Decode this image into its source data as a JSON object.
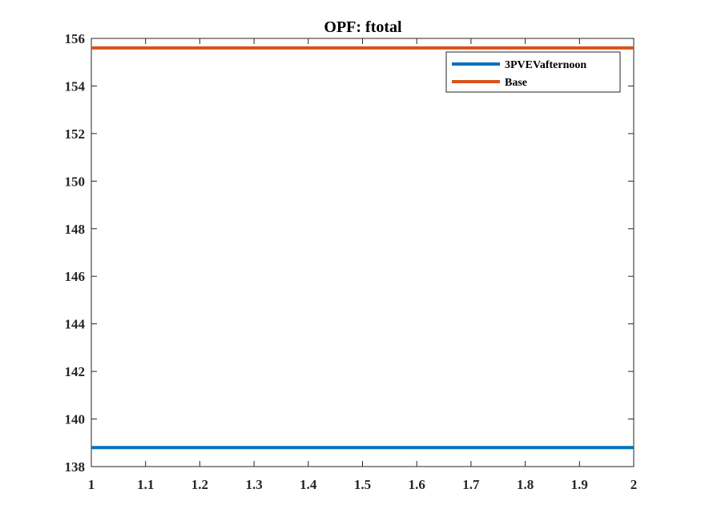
{
  "chart_data": {
    "type": "line",
    "title": "OPF: ftotal",
    "xlabel": "",
    "ylabel": "",
    "xlim": [
      1,
      2
    ],
    "ylim": [
      138,
      156
    ],
    "x_ticks": [
      "1",
      "1.1",
      "1.2",
      "1.3",
      "1.4",
      "1.5",
      "1.6",
      "1.7",
      "1.8",
      "1.9",
      "2"
    ],
    "y_ticks": [
      "138",
      "140",
      "142",
      "144",
      "146",
      "148",
      "150",
      "152",
      "154",
      "156"
    ],
    "grid": false,
    "legend_position": "top-right",
    "series": [
      {
        "name": "3PVEVafternoon",
        "color": "#0072BD",
        "x": [
          1,
          2
        ],
        "y": [
          138.8,
          138.8
        ]
      },
      {
        "name": "Base",
        "color": "#D95319",
        "x": [
          1,
          2
        ],
        "y": [
          155.6,
          155.6
        ]
      }
    ]
  }
}
